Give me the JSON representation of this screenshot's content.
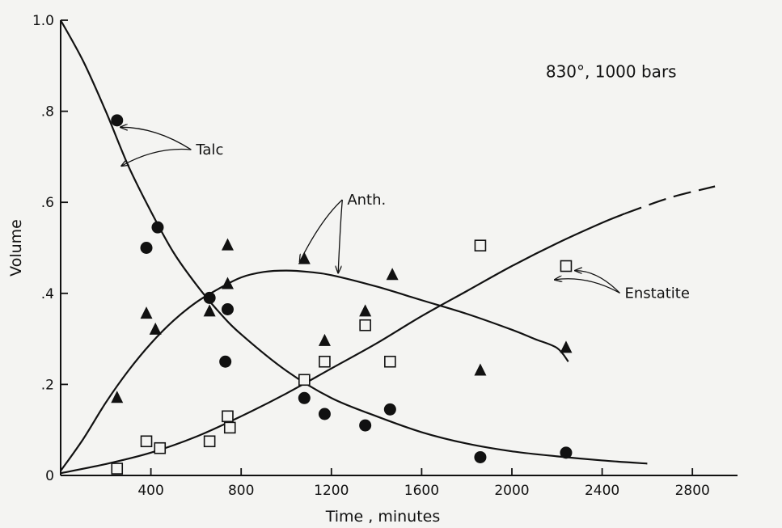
{
  "chart_data": {
    "type": "scatter",
    "title": "",
    "condition_label": "830°, 1000 bars",
    "xlabel": "Time , minutes",
    "ylabel": "Volume",
    "xlim": [
      0,
      3000
    ],
    "ylim": [
      0,
      1.0
    ],
    "x_ticks": [
      {
        "value": 400,
        "label": "400"
      },
      {
        "value": 800,
        "label": "800"
      },
      {
        "value": 1200,
        "label": "1200"
      },
      {
        "value": 1600,
        "label": "1600"
      },
      {
        "value": 2000,
        "label": "2000"
      },
      {
        "value": 2400,
        "label": "2400"
      },
      {
        "value": 2800,
        "label": "2800"
      }
    ],
    "y_ticks": [
      {
        "value": 0,
        "label": "0"
      },
      {
        "value": 0.2,
        "label": ".2"
      },
      {
        "value": 0.4,
        "label": ".4"
      },
      {
        "value": 0.6,
        "label": ".6"
      },
      {
        "value": 0.8,
        "label": ".8"
      },
      {
        "value": 1.0,
        "label": "1.0"
      }
    ],
    "grid": false,
    "series": [
      {
        "name": "Talc",
        "marker": "filled-circle",
        "points": [
          {
            "x": 250,
            "y": 0.78
          },
          {
            "x": 380,
            "y": 0.5
          },
          {
            "x": 430,
            "y": 0.545
          },
          {
            "x": 660,
            "y": 0.39
          },
          {
            "x": 740,
            "y": 0.365
          },
          {
            "x": 730,
            "y": 0.25
          },
          {
            "x": 1080,
            "y": 0.17
          },
          {
            "x": 1170,
            "y": 0.135
          },
          {
            "x": 1350,
            "y": 0.11
          },
          {
            "x": 1460,
            "y": 0.145
          },
          {
            "x": 1860,
            "y": 0.04
          },
          {
            "x": 2240,
            "y": 0.05
          }
        ],
        "curve": [
          {
            "x": 0,
            "y": 1.0
          },
          {
            "x": 100,
            "y": 0.91
          },
          {
            "x": 200,
            "y": 0.8
          },
          {
            "x": 300,
            "y": 0.68
          },
          {
            "x": 400,
            "y": 0.58
          },
          {
            "x": 500,
            "y": 0.49
          },
          {
            "x": 600,
            "y": 0.42
          },
          {
            "x": 700,
            "y": 0.36
          },
          {
            "x": 800,
            "y": 0.31
          },
          {
            "x": 1000,
            "y": 0.23
          },
          {
            "x": 1200,
            "y": 0.17
          },
          {
            "x": 1400,
            "y": 0.13
          },
          {
            "x": 1600,
            "y": 0.095
          },
          {
            "x": 1800,
            "y": 0.07
          },
          {
            "x": 2000,
            "y": 0.053
          },
          {
            "x": 2200,
            "y": 0.042
          },
          {
            "x": 2400,
            "y": 0.033
          },
          {
            "x": 2600,
            "y": 0.026
          }
        ]
      },
      {
        "name": "Anth.",
        "marker": "filled-triangle",
        "points": [
          {
            "x": 250,
            "y": 0.17
          },
          {
            "x": 380,
            "y": 0.355
          },
          {
            "x": 420,
            "y": 0.32
          },
          {
            "x": 660,
            "y": 0.36
          },
          {
            "x": 740,
            "y": 0.42
          },
          {
            "x": 740,
            "y": 0.505
          },
          {
            "x": 1080,
            "y": 0.475
          },
          {
            "x": 1170,
            "y": 0.295
          },
          {
            "x": 1350,
            "y": 0.36
          },
          {
            "x": 1470,
            "y": 0.44
          },
          {
            "x": 1860,
            "y": 0.23
          },
          {
            "x": 2240,
            "y": 0.28
          }
        ],
        "curve": [
          {
            "x": 0,
            "y": 0.01
          },
          {
            "x": 100,
            "y": 0.08
          },
          {
            "x": 200,
            "y": 0.16
          },
          {
            "x": 300,
            "y": 0.23
          },
          {
            "x": 400,
            "y": 0.29
          },
          {
            "x": 500,
            "y": 0.34
          },
          {
            "x": 600,
            "y": 0.38
          },
          {
            "x": 700,
            "y": 0.41
          },
          {
            "x": 800,
            "y": 0.435
          },
          {
            "x": 900,
            "y": 0.447
          },
          {
            "x": 1000,
            "y": 0.45
          },
          {
            "x": 1100,
            "y": 0.447
          },
          {
            "x": 1200,
            "y": 0.44
          },
          {
            "x": 1400,
            "y": 0.415
          },
          {
            "x": 1600,
            "y": 0.385
          },
          {
            "x": 1800,
            "y": 0.355
          },
          {
            "x": 2000,
            "y": 0.32
          },
          {
            "x": 2100,
            "y": 0.3
          },
          {
            "x": 2200,
            "y": 0.28
          },
          {
            "x": 2250,
            "y": 0.25
          }
        ]
      },
      {
        "name": "Enstatite",
        "marker": "open-square",
        "points": [
          {
            "x": 250,
            "y": 0.015
          },
          {
            "x": 380,
            "y": 0.075
          },
          {
            "x": 440,
            "y": 0.06
          },
          {
            "x": 660,
            "y": 0.075
          },
          {
            "x": 740,
            "y": 0.13
          },
          {
            "x": 750,
            "y": 0.105
          },
          {
            "x": 1080,
            "y": 0.21
          },
          {
            "x": 1170,
            "y": 0.25
          },
          {
            "x": 1350,
            "y": 0.33
          },
          {
            "x": 1460,
            "y": 0.25
          },
          {
            "x": 1860,
            "y": 0.505
          },
          {
            "x": 2240,
            "y": 0.46
          }
        ],
        "curve": [
          {
            "x": 0,
            "y": 0.005
          },
          {
            "x": 200,
            "y": 0.025
          },
          {
            "x": 400,
            "y": 0.05
          },
          {
            "x": 600,
            "y": 0.085
          },
          {
            "x": 800,
            "y": 0.13
          },
          {
            "x": 1000,
            "y": 0.18
          },
          {
            "x": 1200,
            "y": 0.235
          },
          {
            "x": 1400,
            "y": 0.29
          },
          {
            "x": 1600,
            "y": 0.35
          },
          {
            "x": 1800,
            "y": 0.405
          },
          {
            "x": 2000,
            "y": 0.46
          },
          {
            "x": 2200,
            "y": 0.51
          },
          {
            "x": 2400,
            "y": 0.555
          },
          {
            "x": 2500,
            "y": 0.575
          }
        ],
        "curve_extrapolated": [
          {
            "x": 2500,
            "y": 0.575
          },
          {
            "x": 2700,
            "y": 0.61
          },
          {
            "x": 2900,
            "y": 0.635
          }
        ]
      }
    ],
    "annotations": [
      {
        "text": "Talc",
        "series": "Talc",
        "text_at": {
          "x": 600,
          "y": 0.705
        },
        "arrows_to": [
          {
            "x": 265,
            "y": 0.765
          },
          {
            "x": 270,
            "y": 0.68
          }
        ]
      },
      {
        "text": "Anth.",
        "series": "Anth.",
        "text_at": {
          "x": 1270,
          "y": 0.595
        },
        "arrows_to": [
          {
            "x": 1060,
            "y": 0.47
          },
          {
            "x": 1230,
            "y": 0.445
          }
        ]
      },
      {
        "text": "Enstatite",
        "series": "Enstatite",
        "text_at": {
          "x": 2500,
          "y": 0.39
        },
        "arrows_to": [
          {
            "x": 2190,
            "y": 0.43
          },
          {
            "x": 2280,
            "y": 0.45
          }
        ]
      }
    ],
    "condition_label_at": {
      "x": 2150,
      "y": 0.875
    }
  }
}
